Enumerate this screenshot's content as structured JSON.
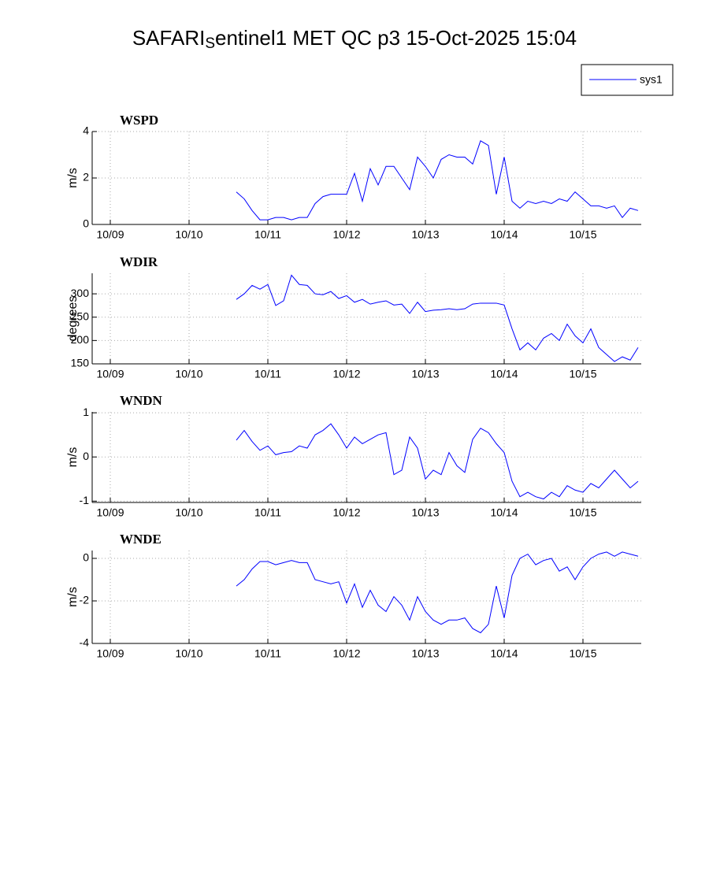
{
  "title": [
    "SAFARI",
    "S",
    "entinel1 MET QC p3 15-Oct-2025 15:04"
  ],
  "chart_data": [
    {
      "type": "line",
      "title": "WSPD",
      "y_label": "m/s",
      "grid": true,
      "legend": "upper right",
      "x": [
        10.6,
        10.7,
        10.8,
        10.9,
        11.0,
        11.1,
        11.2,
        11.3,
        11.4,
        11.5,
        11.6,
        11.7,
        11.8,
        11.9,
        12.0,
        12.1,
        12.2,
        12.3,
        12.4,
        12.5,
        12.6,
        12.7,
        12.8,
        12.9,
        13.0,
        13.1,
        13.2,
        13.3,
        13.4,
        13.5,
        13.6,
        13.7,
        13.8,
        13.9,
        14.0,
        14.1,
        14.2,
        14.3,
        14.4,
        14.5,
        14.6,
        14.7,
        14.8,
        14.9,
        15.0,
        15.1,
        15.2,
        15.3,
        15.4,
        15.5,
        15.6,
        15.7
      ],
      "xlim": [
        8.77,
        15.74
      ],
      "xticks": [
        {
          "value": 9,
          "label": "10/09"
        },
        {
          "value": 10,
          "label": "10/10"
        },
        {
          "value": 11,
          "label": "10/11"
        },
        {
          "value": 12,
          "label": "10/12"
        },
        {
          "value": 13,
          "label": "10/13"
        },
        {
          "value": 14,
          "label": "10/14"
        },
        {
          "value": 15,
          "label": "10/15"
        }
      ],
      "ylim": [
        0,
        4
      ],
      "yticks": [
        0,
        2,
        4
      ],
      "series": [
        {
          "name": "sys1",
          "color": "#0000ff",
          "values": [
            1.4,
            1.1,
            0.6,
            0.2,
            0.2,
            0.3,
            0.3,
            0.2,
            0.3,
            0.3,
            0.9,
            1.2,
            1.3,
            1.3,
            1.3,
            2.2,
            1.0,
            2.4,
            1.7,
            2.5,
            2.5,
            2.0,
            1.5,
            2.9,
            2.5,
            2.0,
            2.8,
            3.0,
            2.9,
            2.9,
            2.6,
            3.6,
            3.4,
            1.3,
            2.9,
            1.0,
            0.7,
            1.0,
            0.9,
            1.0,
            0.9,
            1.1,
            1.0,
            1.4,
            1.1,
            0.8,
            0.8,
            0.7,
            0.8,
            0.3,
            0.7,
            0.6
          ]
        }
      ]
    },
    {
      "type": "line",
      "title": "WDIR",
      "y_label": "degrees",
      "grid": true,
      "x": [
        10.6,
        10.7,
        10.8,
        10.9,
        11.0,
        11.1,
        11.2,
        11.3,
        11.4,
        11.5,
        11.6,
        11.7,
        11.8,
        11.9,
        12.0,
        12.1,
        12.2,
        12.3,
        12.4,
        12.5,
        12.6,
        12.7,
        12.8,
        12.9,
        13.0,
        13.1,
        13.2,
        13.3,
        13.4,
        13.5,
        13.6,
        13.7,
        13.8,
        13.9,
        14.0,
        14.1,
        14.2,
        14.3,
        14.4,
        14.5,
        14.6,
        14.7,
        14.8,
        14.9,
        15.0,
        15.1,
        15.2,
        15.3,
        15.4,
        15.5,
        15.6,
        15.7
      ],
      "xlim": [
        8.77,
        15.74
      ],
      "xticks": [
        {
          "value": 9,
          "label": "10/09"
        },
        {
          "value": 10,
          "label": "10/10"
        },
        {
          "value": 11,
          "label": "10/11"
        },
        {
          "value": 12,
          "label": "10/12"
        },
        {
          "value": 13,
          "label": "10/13"
        },
        {
          "value": 14,
          "label": "10/14"
        },
        {
          "value": 15,
          "label": "10/15"
        }
      ],
      "ylim": [
        150,
        344
      ],
      "yticks": [
        150,
        200,
        250,
        300
      ],
      "series": [
        {
          "color": "#0000ff",
          "values": [
            288,
            300,
            318,
            310,
            320,
            275,
            285,
            340,
            320,
            318,
            300,
            298,
            305,
            290,
            296,
            282,
            288,
            278,
            282,
            285,
            276,
            278,
            258,
            282,
            262,
            265,
            266,
            268,
            266,
            268,
            278,
            280,
            280,
            280,
            276,
            225,
            180,
            195,
            180,
            205,
            215,
            200,
            235,
            210,
            195,
            225,
            185,
            170,
            155,
            165,
            158,
            185
          ]
        }
      ]
    },
    {
      "type": "line",
      "title": "WNDN",
      "y_label": "m/s",
      "grid": true,
      "x": [
        10.6,
        10.7,
        10.8,
        10.9,
        11.0,
        11.1,
        11.2,
        11.3,
        11.4,
        11.5,
        11.6,
        11.7,
        11.8,
        11.9,
        12.0,
        12.1,
        12.2,
        12.3,
        12.4,
        12.5,
        12.6,
        12.7,
        12.8,
        12.9,
        13.0,
        13.1,
        13.2,
        13.3,
        13.4,
        13.5,
        13.6,
        13.7,
        13.8,
        13.9,
        14.0,
        14.1,
        14.2,
        14.3,
        14.4,
        14.5,
        14.6,
        14.7,
        14.8,
        14.9,
        15.0,
        15.1,
        15.2,
        15.3,
        15.4,
        15.5,
        15.6,
        15.7
      ],
      "xlim": [
        8.77,
        15.74
      ],
      "xticks": [
        {
          "value": 9,
          "label": "10/09"
        },
        {
          "value": 10,
          "label": "10/10"
        },
        {
          "value": 11,
          "label": "10/11"
        },
        {
          "value": 12,
          "label": "10/12"
        },
        {
          "value": 13,
          "label": "10/13"
        },
        {
          "value": 14,
          "label": "10/14"
        },
        {
          "value": 15,
          "label": "10/15"
        }
      ],
      "ylim": [
        -1.03,
        1.02
      ],
      "yticks": [
        -1,
        0,
        1
      ],
      "series": [
        {
          "color": "#0000ff",
          "values": [
            0.38,
            0.6,
            0.35,
            0.15,
            0.25,
            0.05,
            0.1,
            0.12,
            0.25,
            0.2,
            0.5,
            0.6,
            0.75,
            0.5,
            0.2,
            0.45,
            0.3,
            0.4,
            0.5,
            0.55,
            -0.4,
            -0.3,
            0.45,
            0.2,
            -0.5,
            -0.3,
            -0.4,
            0.1,
            -0.2,
            -0.35,
            0.4,
            0.65,
            0.55,
            0.3,
            0.1,
            -0.55,
            -0.9,
            -0.8,
            -0.9,
            -0.95,
            -0.8,
            -0.9,
            -0.65,
            -0.75,
            -0.8,
            -0.6,
            -0.7,
            -0.5,
            -0.3,
            -0.5,
            -0.7,
            -0.55
          ]
        }
      ]
    },
    {
      "type": "line",
      "title": "WNDE",
      "y_label": "m/s",
      "grid": true,
      "x": [
        10.6,
        10.7,
        10.8,
        10.9,
        11.0,
        11.1,
        11.2,
        11.3,
        11.4,
        11.5,
        11.6,
        11.7,
        11.8,
        11.9,
        12.0,
        12.1,
        12.2,
        12.3,
        12.4,
        12.5,
        12.6,
        12.7,
        12.8,
        12.9,
        13.0,
        13.1,
        13.2,
        13.3,
        13.4,
        13.5,
        13.6,
        13.7,
        13.8,
        13.9,
        14.0,
        14.1,
        14.2,
        14.3,
        14.4,
        14.5,
        14.6,
        14.7,
        14.8,
        14.9,
        15.0,
        15.1,
        15.2,
        15.3,
        15.4,
        15.5,
        15.6,
        15.7
      ],
      "xlim": [
        8.77,
        15.74
      ],
      "xticks": [
        {
          "value": 9,
          "label": "10/09"
        },
        {
          "value": 10,
          "label": "10/10"
        },
        {
          "value": 11,
          "label": "10/11"
        },
        {
          "value": 12,
          "label": "10/12"
        },
        {
          "value": 13,
          "label": "10/13"
        },
        {
          "value": 14,
          "label": "10/14"
        },
        {
          "value": 15,
          "label": "10/15"
        }
      ],
      "ylim": [
        -4,
        0.37
      ],
      "yticks": [
        -4,
        -2,
        0
      ],
      "series": [
        {
          "color": "#0000ff",
          "values": [
            -1.3,
            -1.0,
            -0.5,
            -0.15,
            -0.15,
            -0.3,
            -0.2,
            -0.1,
            -0.2,
            -0.2,
            -1.0,
            -1.1,
            -1.2,
            -1.1,
            -2.1,
            -1.2,
            -2.3,
            -1.5,
            -2.2,
            -2.5,
            -1.8,
            -2.2,
            -2.9,
            -1.8,
            -2.5,
            -2.9,
            -3.1,
            -2.9,
            -2.9,
            -2.8,
            -3.3,
            -3.5,
            -3.1,
            -1.3,
            -2.8,
            -0.8,
            0.0,
            0.2,
            -0.3,
            -0.1,
            0.0,
            -0.6,
            -0.4,
            -1.0,
            -0.4,
            0.0,
            0.2,
            0.3,
            0.1,
            0.3,
            0.2,
            0.1
          ]
        }
      ]
    }
  ]
}
